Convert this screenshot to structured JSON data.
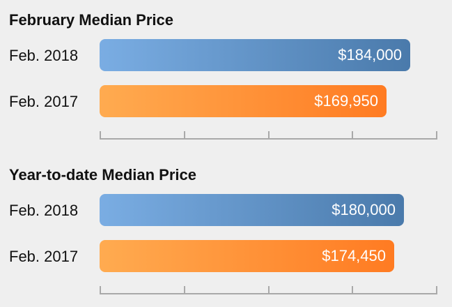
{
  "colors": {
    "background": "#efefef",
    "blue_start": "#7aade3",
    "blue_end": "#4a7aab",
    "orange_start": "#ffab50",
    "orange_end": "#ff7b22"
  },
  "chart_data": [
    {
      "type": "bar",
      "orientation": "horizontal",
      "title": "February Median Price",
      "categories": [
        "Feb. 2018",
        "Feb. 2017"
      ],
      "values": [
        184000,
        169950
      ],
      "value_labels": [
        "$184,000",
        "$169,950"
      ],
      "bar_colors": [
        "blue",
        "orange"
      ],
      "xlim": [
        0,
        200000
      ],
      "grid": false
    },
    {
      "type": "bar",
      "orientation": "horizontal",
      "title": "Year-to-date Median Price",
      "categories": [
        "Feb. 2018",
        "Feb. 2017"
      ],
      "values": [
        180000,
        174450
      ],
      "value_labels": [
        "$180,000",
        "$174,450"
      ],
      "bar_colors": [
        "blue",
        "orange"
      ],
      "xlim": [
        0,
        200000
      ],
      "grid": false
    }
  ]
}
